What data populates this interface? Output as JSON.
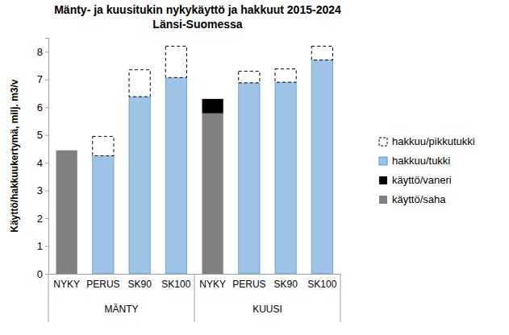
{
  "chart_data": {
    "type": "bar",
    "title": [
      "Mänty- ja kuusitukin nykykäyttö ja hakkuut 2015-2024",
      "Länsi-Suomessa"
    ],
    "y_label": "Käyttö/hakkuukertymä, milj. m3/v",
    "categories": [
      "NYKY",
      "PERUS",
      "SK90",
      "SK100",
      "NYKY",
      "PERUS",
      "SK90",
      "SK100"
    ],
    "groups": [
      "MÄNTY",
      "KUUSI"
    ],
    "stacked": true,
    "legend": "right",
    "grid": false,
    "ylim": [
      0,
      8.5
    ],
    "yticks": [
      0,
      1,
      2,
      3,
      4,
      5,
      6,
      7,
      8
    ],
    "series": [
      {
        "name": "käyttö/saha",
        "color": "#808080",
        "values": [
          4.45,
          null,
          null,
          null,
          5.78,
          null,
          null,
          null
        ]
      },
      {
        "name": "käyttö/vaneri",
        "color": "#000000",
        "values": [
          null,
          null,
          null,
          null,
          0.52,
          null,
          null,
          null
        ]
      },
      {
        "name": "hakkuu/tukki",
        "color": "#9dc3e6",
        "values": [
          null,
          4.25,
          6.38,
          7.07,
          null,
          6.88,
          6.9,
          7.7
        ]
      },
      {
        "name": "hakkuu/pikkutukki",
        "color": "#ffffff",
        "line_style": "dashed",
        "values": [
          null,
          0.7,
          0.97,
          1.13,
          null,
          0.42,
          0.48,
          0.5
        ]
      }
    ]
  }
}
